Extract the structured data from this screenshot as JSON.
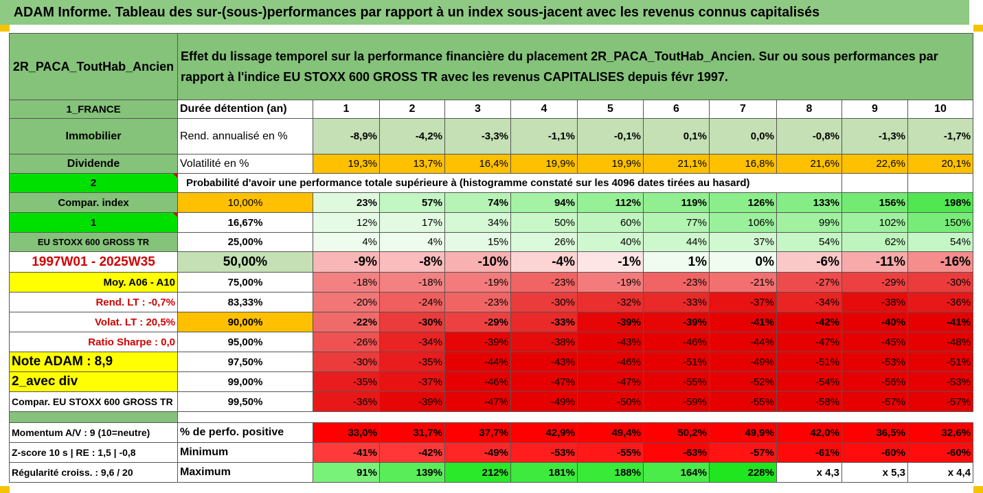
{
  "title": "ADAM Informe. Tableau des sur-(sous-)performances par rapport à un index sous-jacent avec les revenus connus capitalisés",
  "colors": {
    "header_green": "#85c27a",
    "light_green": "#c4e0b4",
    "bright_green": "#00e000",
    "orange": "#ffc000",
    "yellow": "#ffff00",
    "red_text": "#d00000"
  },
  "header": {
    "fund_name": "2R_PACA_ToutHab_Ancien",
    "description": "Effet du lissage temporel sur la performance financière du placement 2R_PACA_ToutHab_Ancien. Sur ou sous performances par rapport à l'indice EU STOXX 600 GROSS TR avec les revenus CAPITALISES depuis févr 1997."
  },
  "left_labels": {
    "country": "1_FRANCE",
    "category": "Immobilier",
    "dividend": "Dividende",
    "two": "2",
    "compar_index": "Compar. index",
    "one": "1",
    "index_name": "EU STOXX 600 GROSS TR",
    "period": "1997W01 - 2025W35",
    "moy": "Moy. A06 - A10",
    "rend_lt": "Rend. LT :   -0,7%",
    "volat_lt": "Volat. LT :   20,5%",
    "sharpe": "Ratio Sharpe :   0,0",
    "note": "Note ADAM : 8,9",
    "avec_div": "2_avec div",
    "compar_long": "Compar. EU STOXX 600 GROSS TR"
  },
  "row_labels": {
    "duration": "Durée détention (an)",
    "rend": "Rend. annualisé en %",
    "volat": "Volatilité en %",
    "proba": "Probabilité d'avoir une performance totale supérieure à (histogramme constaté sur les 4096 dates tirées au hasard)",
    "pct_positive": "% de perfo. positive",
    "minimum": "Minimum",
    "maximum": "Maximum"
  },
  "years": [
    "1",
    "2",
    "3",
    "4",
    "5",
    "6",
    "7",
    "8",
    "9",
    "10"
  ],
  "rend": [
    "-8,9%",
    "-4,2%",
    "-3,3%",
    "-1,1%",
    "-0,1%",
    "0,1%",
    "0,0%",
    "-0,8%",
    "-1,3%",
    "-1,7%"
  ],
  "volat": [
    "19,3%",
    "13,7%",
    "16,4%",
    "19,9%",
    "19,9%",
    "21,1%",
    "16,8%",
    "21,6%",
    "22,6%",
    "20,1%"
  ],
  "percentiles": [
    {
      "p": "10,00%",
      "values": [
        "23%",
        "57%",
        "74%",
        "94%",
        "112%",
        "119%",
        "126%",
        "133%",
        "156%",
        "198%"
      ]
    },
    {
      "p": "16,67%",
      "values": [
        "12%",
        "17%",
        "34%",
        "50%",
        "60%",
        "77%",
        "106%",
        "99%",
        "102%",
        "150%"
      ]
    },
    {
      "p": "25,00%",
      "values": [
        "4%",
        "4%",
        "15%",
        "26%",
        "40%",
        "44%",
        "37%",
        "54%",
        "62%",
        "54%"
      ]
    },
    {
      "p": "50,00%",
      "values": [
        "-9%",
        "-8%",
        "-10%",
        "-4%",
        "-1%",
        "1%",
        "0%",
        "-6%",
        "-11%",
        "-16%"
      ]
    },
    {
      "p": "75,00%",
      "values": [
        "-18%",
        "-18%",
        "-19%",
        "-23%",
        "-19%",
        "-23%",
        "-21%",
        "-27%",
        "-29%",
        "-30%"
      ]
    },
    {
      "p": "83,33%",
      "values": [
        "-20%",
        "-24%",
        "-23%",
        "-30%",
        "-32%",
        "-33%",
        "-37%",
        "-34%",
        "-38%",
        "-36%"
      ]
    },
    {
      "p": "90,00%",
      "values": [
        "-22%",
        "-30%",
        "-29%",
        "-33%",
        "-39%",
        "-39%",
        "-41%",
        "-42%",
        "-40%",
        "-41%"
      ]
    },
    {
      "p": "95,00%",
      "values": [
        "-26%",
        "-34%",
        "-39%",
        "-38%",
        "-43%",
        "-46%",
        "-44%",
        "-47%",
        "-45%",
        "-48%"
      ]
    },
    {
      "p": "97,50%",
      "values": [
        "-30%",
        "-35%",
        "-44%",
        "-43%",
        "-46%",
        "-51%",
        "-49%",
        "-51%",
        "-53%",
        "-51%"
      ]
    },
    {
      "p": "99,00%",
      "values": [
        "-35%",
        "-37%",
        "-46%",
        "-47%",
        "-47%",
        "-55%",
        "-52%",
        "-54%",
        "-56%",
        "-53%"
      ]
    },
    {
      "p": "99,50%",
      "values": [
        "-36%",
        "-39%",
        "-47%",
        "-49%",
        "-50%",
        "-59%",
        "-55%",
        "-58%",
        "-57%",
        "-57%"
      ]
    }
  ],
  "bottom": {
    "momentum": "Momentum A/V : 9 (10=neutre)",
    "zscore": "Z-score 10 s  |  RE : 1,5  |  -0,8",
    "regularite": "Régularité croiss. : 9,6 / 20",
    "pct_positive": [
      "33,0%",
      "31,7%",
      "37,7%",
      "42,9%",
      "49,4%",
      "50,2%",
      "49,9%",
      "42,0%",
      "36,5%",
      "32,6%"
    ],
    "minimum": [
      "-41%",
      "-42%",
      "-49%",
      "-53%",
      "-55%",
      "-63%",
      "-57%",
      "-61%",
      "-60%",
      "-60%"
    ],
    "maximum": [
      "91%",
      "139%",
      "212%",
      "181%",
      "188%",
      "164%",
      "228%",
      "x 4,3",
      "x 5,3",
      "x 4,4"
    ]
  }
}
